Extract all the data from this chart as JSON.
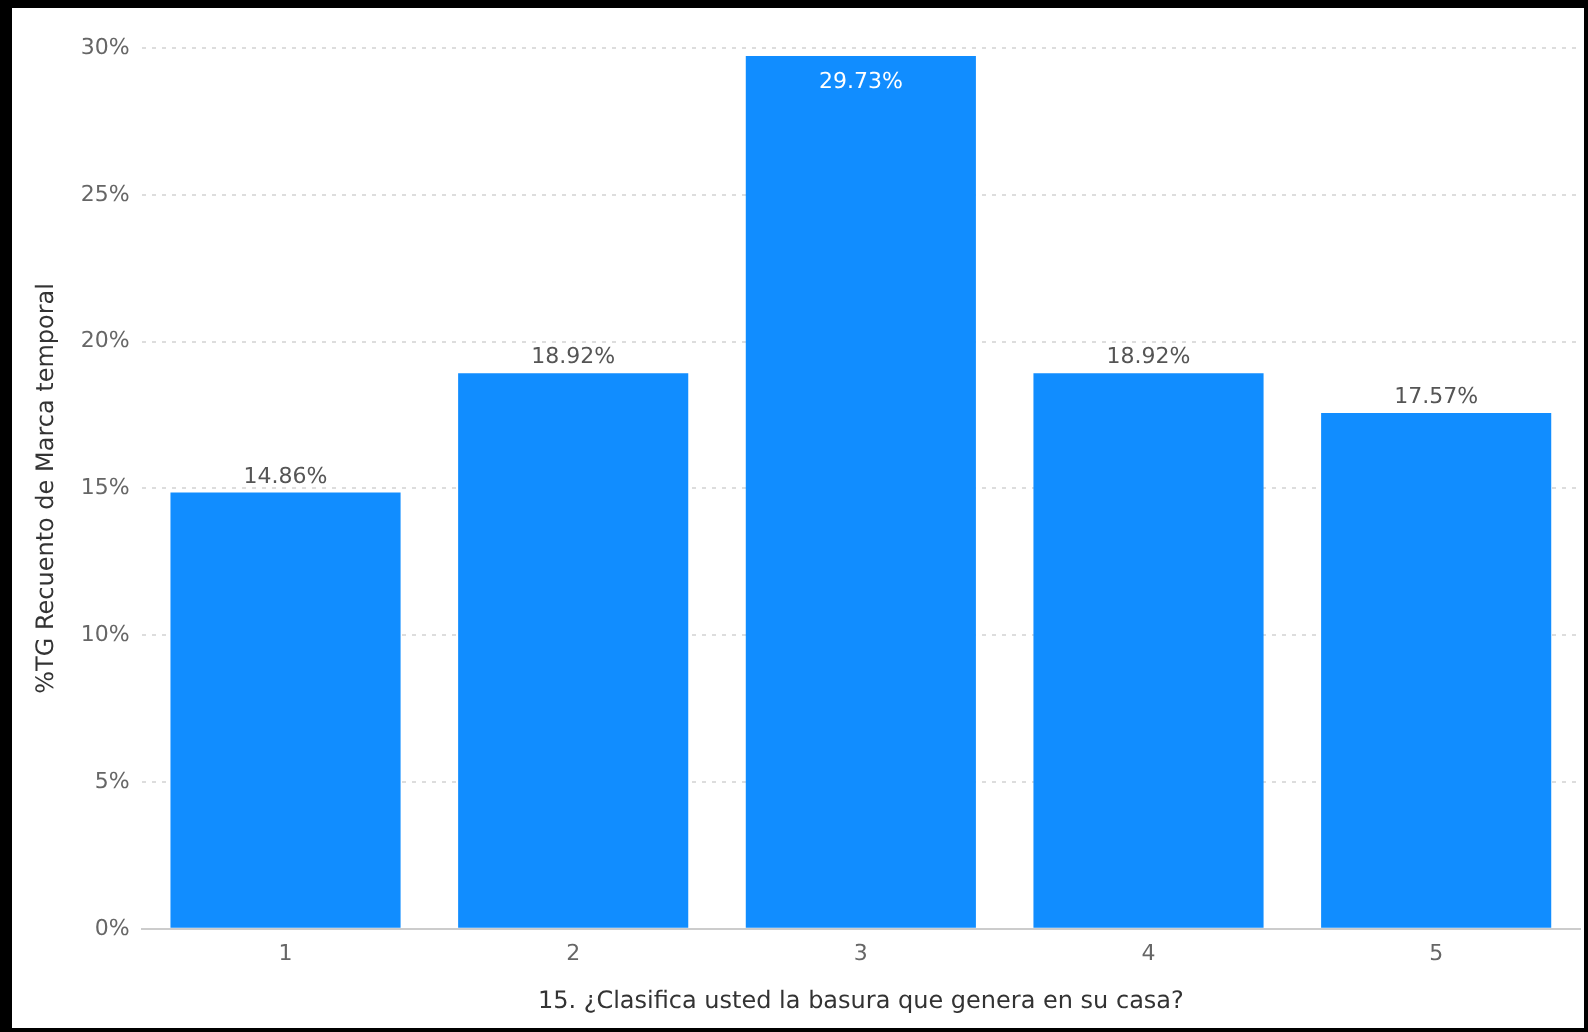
{
  "chart_data": {
    "type": "bar",
    "xlabel": "15. ¿Clasifica usted la basura que genera en su casa?",
    "ylabel": "%TG Recuento de Marca temporal",
    "categories": [
      "1",
      "2",
      "3",
      "4",
      "5"
    ],
    "values": [
      14.86,
      18.92,
      29.73,
      18.92,
      17.57
    ],
    "value_labels": [
      "14.86%",
      "18.92%",
      "29.73%",
      "18.92%",
      "17.57%"
    ],
    "color": "#118dff",
    "ylim": [
      0,
      30
    ],
    "yticks": [
      {
        "value": 0,
        "label": "0%"
      },
      {
        "value": 5,
        "label": "5%"
      },
      {
        "value": 10,
        "label": "10%"
      },
      {
        "value": 15,
        "label": "15%"
      },
      {
        "value": 20,
        "label": "20%"
      },
      {
        "value": 25,
        "label": "25%"
      },
      {
        "value": 30,
        "label": "30%"
      }
    ],
    "grid": "y"
  }
}
